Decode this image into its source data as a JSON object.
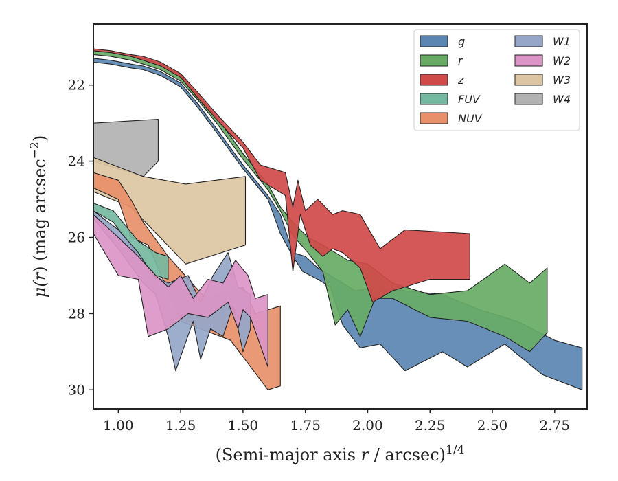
{
  "chart_data": {
    "type": "area",
    "xlabel": {
      "main": "(Semi-major axis ",
      "var": "r",
      "rest": " / arcsec)",
      "sup": "1/4"
    },
    "ylabel": {
      "pre": "μ(",
      "var": "r",
      "post": ") (mag arcsec",
      "sup": "−2",
      "end": ")"
    },
    "xlim": [
      0.9,
      2.88
    ],
    "ylim": [
      20.4,
      30.5
    ],
    "y_inverted": true,
    "xticks": [
      1.0,
      1.25,
      1.5,
      1.75,
      2.0,
      2.25,
      2.5,
      2.75
    ],
    "xtick_labels": [
      "1.00",
      "1.25",
      "1.50",
      "1.75",
      "2.00",
      "2.25",
      "2.50",
      "2.75"
    ],
    "yticks": [
      22,
      24,
      26,
      28,
      30
    ],
    "ytick_labels": [
      "22",
      "24",
      "26",
      "28",
      "30"
    ],
    "legend": {
      "placement": "top-right",
      "columns": 2
    },
    "series": [
      {
        "name": "W4",
        "color": "#b2b2b2",
        "upper": [
          [
            0.9,
            23.0
          ],
          [
            1.16,
            22.9
          ]
        ],
        "lower": [
          [
            0.9,
            24.0
          ],
          [
            1.1,
            24.4
          ],
          [
            1.16,
            24.0
          ]
        ]
      },
      {
        "name": "W3",
        "color": "#dcc5a3",
        "upper": [
          [
            0.9,
            23.9
          ],
          [
            1.1,
            24.4
          ],
          [
            1.27,
            24.6
          ],
          [
            1.51,
            24.4
          ]
        ],
        "lower": [
          [
            0.9,
            24.8
          ],
          [
            1.05,
            25.2
          ],
          [
            1.27,
            26.7
          ],
          [
            1.51,
            26.2
          ]
        ]
      },
      {
        "name": "NUV",
        "color": "#e8906a",
        "upper": [
          [
            0.9,
            24.3
          ],
          [
            1.0,
            24.5
          ],
          [
            1.05,
            25.0
          ],
          [
            1.1,
            25.6
          ],
          [
            1.2,
            26.5
          ],
          [
            1.35,
            27.6
          ],
          [
            1.5,
            27.3
          ],
          [
            1.55,
            28.0
          ],
          [
            1.65,
            27.8
          ]
        ],
        "lower": [
          [
            0.9,
            24.7
          ],
          [
            1.0,
            25.0
          ],
          [
            1.05,
            26.0
          ],
          [
            1.12,
            26.2
          ],
          [
            1.25,
            28.2
          ],
          [
            1.45,
            28.7
          ],
          [
            1.6,
            30.0
          ],
          [
            1.65,
            29.9
          ]
        ]
      },
      {
        "name": "FUV",
        "color": "#75b9a0",
        "upper": [
          [
            0.9,
            25.1
          ],
          [
            0.98,
            25.3
          ],
          [
            1.08,
            26.1
          ],
          [
            1.15,
            26.4
          ],
          [
            1.2,
            26.5
          ]
        ],
        "lower": [
          [
            0.9,
            25.3
          ],
          [
            0.98,
            25.6
          ],
          [
            1.08,
            26.5
          ],
          [
            1.15,
            27.0
          ],
          [
            1.2,
            27.1
          ]
        ]
      },
      {
        "name": "W1",
        "color": "#95a6c8",
        "upper": [
          [
            0.9,
            25.3
          ],
          [
            1.0,
            25.8
          ],
          [
            1.08,
            26.4
          ],
          [
            1.14,
            27.0
          ],
          [
            1.2,
            27.2
          ],
          [
            1.28,
            27.0
          ],
          [
            1.33,
            27.7
          ],
          [
            1.38,
            27.0
          ],
          [
            1.44,
            26.4
          ],
          [
            1.48,
            27.3
          ],
          [
            1.53,
            27.5
          ]
        ],
        "lower": [
          [
            0.9,
            25.5
          ],
          [
            1.0,
            26.3
          ],
          [
            1.1,
            27.2
          ],
          [
            1.15,
            27.5
          ],
          [
            1.2,
            28.6
          ],
          [
            1.23,
            29.5
          ],
          [
            1.3,
            28.2
          ],
          [
            1.33,
            29.2
          ],
          [
            1.37,
            28.4
          ],
          [
            1.42,
            28.6
          ],
          [
            1.46,
            27.8
          ],
          [
            1.5,
            29.0
          ],
          [
            1.53,
            28.4
          ]
        ]
      },
      {
        "name": "W2",
        "color": "#db95c6",
        "upper": [
          [
            0.9,
            25.4
          ],
          [
            1.0,
            26.0
          ],
          [
            1.08,
            26.5
          ],
          [
            1.15,
            27.0
          ],
          [
            1.2,
            27.3
          ],
          [
            1.25,
            27.0
          ],
          [
            1.3,
            27.6
          ],
          [
            1.36,
            27.1
          ],
          [
            1.42,
            27.2
          ],
          [
            1.47,
            26.6
          ],
          [
            1.52,
            27.0
          ],
          [
            1.55,
            27.6
          ],
          [
            1.6,
            27.5
          ]
        ],
        "lower": [
          [
            0.9,
            25.9
          ],
          [
            1.0,
            27.0
          ],
          [
            1.08,
            27.1
          ],
          [
            1.12,
            28.6
          ],
          [
            1.2,
            28.4
          ],
          [
            1.28,
            28.0
          ],
          [
            1.36,
            28.1
          ],
          [
            1.44,
            27.7
          ],
          [
            1.48,
            28.4
          ],
          [
            1.5,
            27.9
          ],
          [
            1.53,
            28.1
          ],
          [
            1.6,
            29.4
          ]
        ]
      },
      {
        "name": "g",
        "color": "#5a86b1",
        "upper": [
          [
            0.9,
            21.3
          ],
          [
            0.97,
            21.35
          ],
          [
            1.05,
            21.45
          ],
          [
            1.1,
            21.5
          ],
          [
            1.17,
            21.65
          ],
          [
            1.25,
            21.95
          ],
          [
            1.32,
            22.5
          ],
          [
            1.4,
            23.2
          ],
          [
            1.5,
            24.1
          ],
          [
            1.6,
            24.9
          ],
          [
            1.65,
            25.4
          ],
          [
            1.7,
            26.4
          ],
          [
            1.75,
            26.5
          ],
          [
            1.8,
            26.8
          ],
          [
            1.85,
            27.0
          ],
          [
            1.9,
            27.2
          ],
          [
            1.95,
            27.4
          ],
          [
            2.05,
            27.3
          ],
          [
            2.15,
            27.4
          ],
          [
            2.3,
            27.5
          ],
          [
            2.45,
            27.9
          ],
          [
            2.6,
            28.2
          ],
          [
            2.75,
            28.7
          ],
          [
            2.86,
            28.9
          ]
        ],
        "lower": [
          [
            0.9,
            21.4
          ],
          [
            0.97,
            21.45
          ],
          [
            1.05,
            21.55
          ],
          [
            1.1,
            21.6
          ],
          [
            1.17,
            21.75
          ],
          [
            1.25,
            22.05
          ],
          [
            1.32,
            22.6
          ],
          [
            1.4,
            23.3
          ],
          [
            1.5,
            24.2
          ],
          [
            1.6,
            25.0
          ],
          [
            1.65,
            25.9
          ],
          [
            1.7,
            26.5
          ],
          [
            1.74,
            26.9
          ],
          [
            1.8,
            27.1
          ],
          [
            1.85,
            27.3
          ],
          [
            1.9,
            28.3
          ],
          [
            1.97,
            28.9
          ],
          [
            2.05,
            28.8
          ],
          [
            2.15,
            29.5
          ],
          [
            2.3,
            29.0
          ],
          [
            2.4,
            29.4
          ],
          [
            2.55,
            28.8
          ],
          [
            2.7,
            29.6
          ],
          [
            2.86,
            30.0
          ]
        ]
      },
      {
        "name": "r",
        "color": "#68ab66",
        "upper": [
          [
            0.9,
            21.1
          ],
          [
            0.97,
            21.15
          ],
          [
            1.05,
            21.25
          ],
          [
            1.1,
            21.3
          ],
          [
            1.17,
            21.45
          ],
          [
            1.25,
            21.75
          ],
          [
            1.32,
            22.25
          ],
          [
            1.4,
            22.9
          ],
          [
            1.5,
            23.8
          ],
          [
            1.6,
            24.6
          ],
          [
            1.65,
            25.2
          ],
          [
            1.7,
            25.6
          ],
          [
            1.76,
            26.0
          ],
          [
            1.82,
            26.2
          ],
          [
            1.87,
            26.4
          ],
          [
            1.92,
            26.6
          ],
          [
            2.0,
            26.7
          ],
          [
            2.1,
            27.2
          ],
          [
            2.25,
            27.5
          ],
          [
            2.4,
            27.4
          ],
          [
            2.55,
            26.7
          ],
          [
            2.65,
            27.2
          ],
          [
            2.72,
            26.8
          ]
        ],
        "lower": [
          [
            0.9,
            21.2
          ],
          [
            0.97,
            21.25
          ],
          [
            1.05,
            21.35
          ],
          [
            1.1,
            21.45
          ],
          [
            1.17,
            21.6
          ],
          [
            1.25,
            21.9
          ],
          [
            1.32,
            22.4
          ],
          [
            1.4,
            23.05
          ],
          [
            1.5,
            23.95
          ],
          [
            1.6,
            24.75
          ],
          [
            1.65,
            25.3
          ],
          [
            1.7,
            25.95
          ],
          [
            1.76,
            26.4
          ],
          [
            1.82,
            26.9
          ],
          [
            1.87,
            28.3
          ],
          [
            1.92,
            27.9
          ],
          [
            1.97,
            28.6
          ],
          [
            2.03,
            27.6
          ],
          [
            2.1,
            27.6
          ],
          [
            2.25,
            28.1
          ],
          [
            2.4,
            28.2
          ],
          [
            2.55,
            28.6
          ],
          [
            2.65,
            29.0
          ],
          [
            2.72,
            28.5
          ]
        ]
      },
      {
        "name": "z",
        "color": "#d14a4a",
        "upper": [
          [
            0.9,
            21.05
          ],
          [
            0.97,
            21.1
          ],
          [
            1.05,
            21.2
          ],
          [
            1.1,
            21.25
          ],
          [
            1.17,
            21.4
          ],
          [
            1.25,
            21.7
          ],
          [
            1.32,
            22.2
          ],
          [
            1.4,
            22.8
          ],
          [
            1.5,
            23.5
          ],
          [
            1.57,
            24.1
          ],
          [
            1.62,
            24.2
          ],
          [
            1.67,
            24.3
          ],
          [
            1.7,
            25.2
          ],
          [
            1.72,
            24.5
          ],
          [
            1.75,
            25.3
          ],
          [
            1.8,
            25.0
          ],
          [
            1.86,
            25.4
          ],
          [
            1.9,
            25.3
          ],
          [
            1.97,
            25.4
          ],
          [
            2.05,
            26.3
          ],
          [
            2.15,
            25.8
          ],
          [
            2.41,
            25.9
          ]
        ],
        "lower": [
          [
            0.9,
            21.1
          ],
          [
            0.97,
            21.15
          ],
          [
            1.05,
            21.25
          ],
          [
            1.1,
            21.35
          ],
          [
            1.17,
            21.5
          ],
          [
            1.25,
            21.8
          ],
          [
            1.32,
            22.35
          ],
          [
            1.4,
            22.95
          ],
          [
            1.5,
            23.65
          ],
          [
            1.57,
            24.5
          ],
          [
            1.62,
            24.7
          ],
          [
            1.67,
            24.9
          ],
          [
            1.7,
            26.9
          ],
          [
            1.73,
            25.4
          ],
          [
            1.77,
            26.2
          ],
          [
            1.82,
            26.5
          ],
          [
            1.86,
            26.3
          ],
          [
            1.9,
            26.4
          ],
          [
            1.97,
            26.8
          ],
          [
            2.02,
            27.7
          ],
          [
            2.1,
            27.4
          ],
          [
            2.25,
            27.1
          ],
          [
            2.41,
            27.1
          ]
        ]
      }
    ],
    "legend_order": [
      "g",
      "r",
      "z",
      "FUV",
      "NUV",
      "W1",
      "W2",
      "W3",
      "W4"
    ]
  }
}
